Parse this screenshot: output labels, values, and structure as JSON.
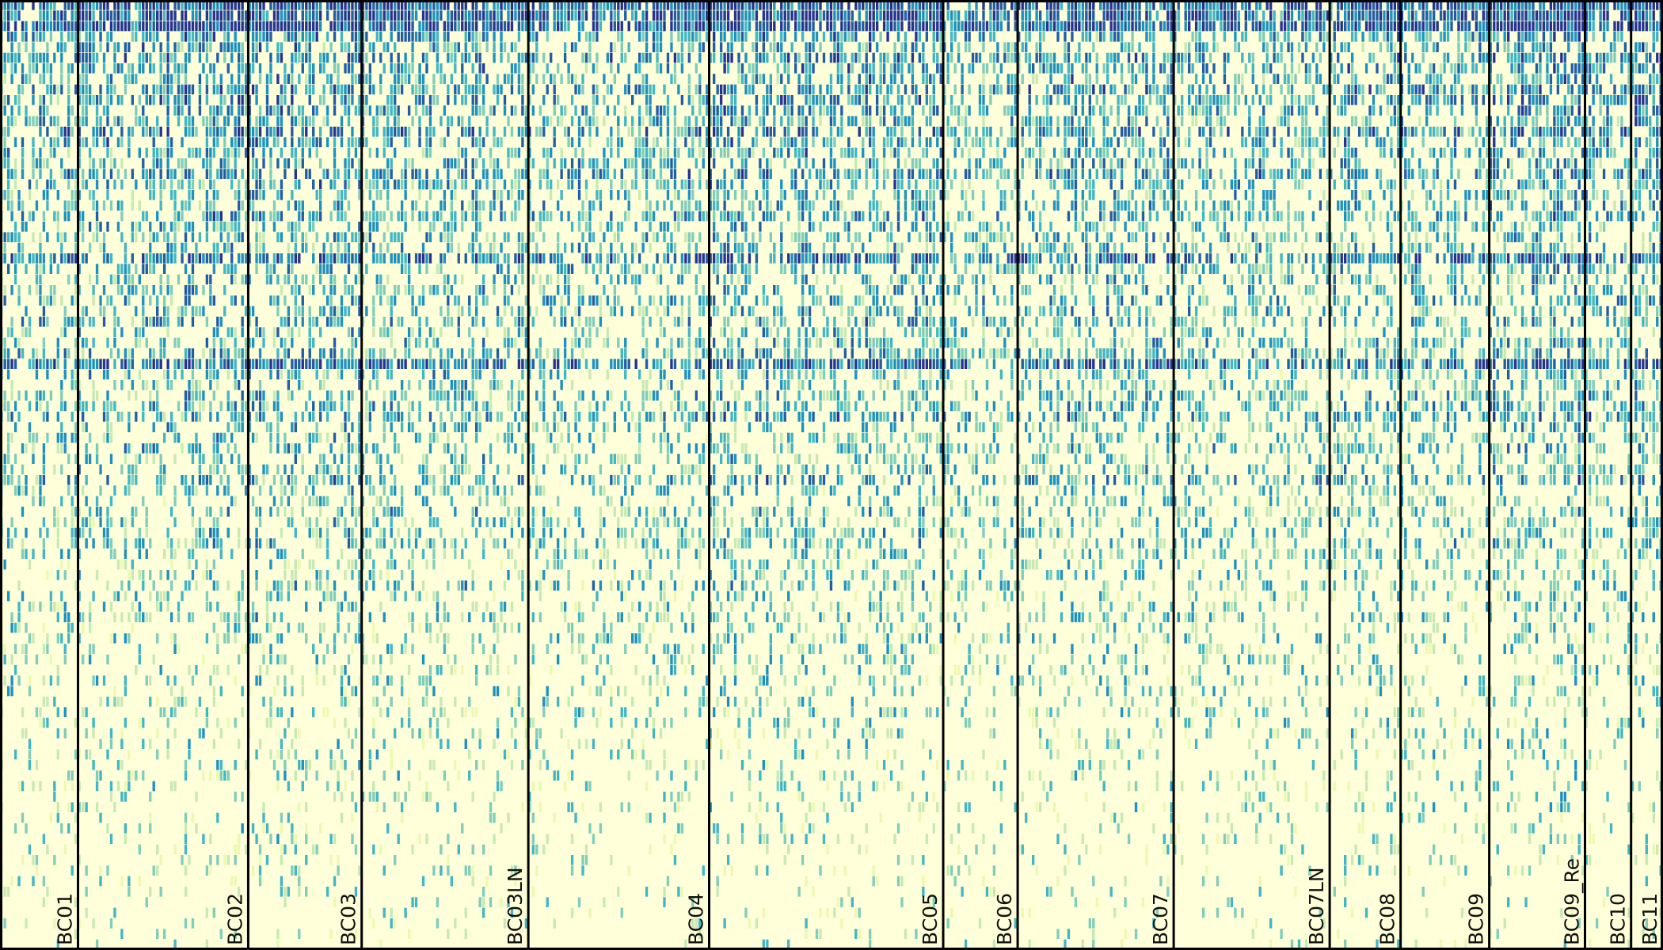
{
  "chart_data": {
    "type": "heatmap",
    "title": "",
    "xlabel": "",
    "ylabel": "",
    "colormap": "YlGnBu",
    "colors": {
      "low": "#ffffd9",
      "mid1": "#edf8b1",
      "mid2": "#c7e9b4",
      "mid3": "#7fcdbb",
      "mid4": "#41b6c4",
      "mid5": "#1d91c0",
      "mid6": "#225ea8",
      "high": "#253494"
    },
    "value_range": [
      0,
      1
    ],
    "row_count": 90,
    "samples": [
      {
        "name": "BC01",
        "cell_count": 22
      },
      {
        "name": "BC02",
        "cell_count": 48
      },
      {
        "name": "BC03",
        "cell_count": 32
      },
      {
        "name": "BC03LN",
        "cell_count": 47
      },
      {
        "name": "BC04",
        "cell_count": 51
      },
      {
        "name": "BC05",
        "cell_count": 66
      },
      {
        "name": "BC06",
        "cell_count": 21
      },
      {
        "name": "BC07",
        "cell_count": 44
      },
      {
        "name": "BC07LN",
        "cell_count": 44
      },
      {
        "name": "BC08",
        "cell_count": 20
      },
      {
        "name": "BC09",
        "cell_count": 25
      },
      {
        "name": "BC09_Re",
        "cell_count": 27
      },
      {
        "name": "BC10",
        "cell_count": 13
      },
      {
        "name": "BC11",
        "cell_count": 9
      }
    ],
    "row_mean_expression": [
      0.92,
      0.88,
      0.95,
      0.55,
      0.5,
      0.58,
      0.52,
      0.48,
      0.6,
      0.55,
      0.5,
      0.46,
      0.62,
      0.5,
      0.45,
      0.42,
      0.58,
      0.48,
      0.4,
      0.45,
      0.5,
      0.38,
      0.42,
      0.4,
      0.72,
      0.44,
      0.4,
      0.38,
      0.46,
      0.42,
      0.48,
      0.36,
      0.4,
      0.44,
      0.78,
      0.38,
      0.35,
      0.4,
      0.42,
      0.5,
      0.36,
      0.34,
      0.38,
      0.32,
      0.35,
      0.46,
      0.33,
      0.3,
      0.34,
      0.32,
      0.36,
      0.35,
      0.3,
      0.26,
      0.28,
      0.34,
      0.25,
      0.24,
      0.3,
      0.22,
      0.26,
      0.24,
      0.22,
      0.2,
      0.23,
      0.21,
      0.19,
      0.22,
      0.18,
      0.2,
      0.17,
      0.19,
      0.16,
      0.18,
      0.15,
      0.14,
      0.16,
      0.13,
      0.12,
      0.14,
      0.12,
      0.1,
      0.11,
      0.09,
      0.1,
      0.08,
      0.07,
      0.08,
      0.06,
      0.05
    ],
    "row_count_note_visible": false,
    "axis_ticks": false,
    "grid": false,
    "legend": "none"
  }
}
